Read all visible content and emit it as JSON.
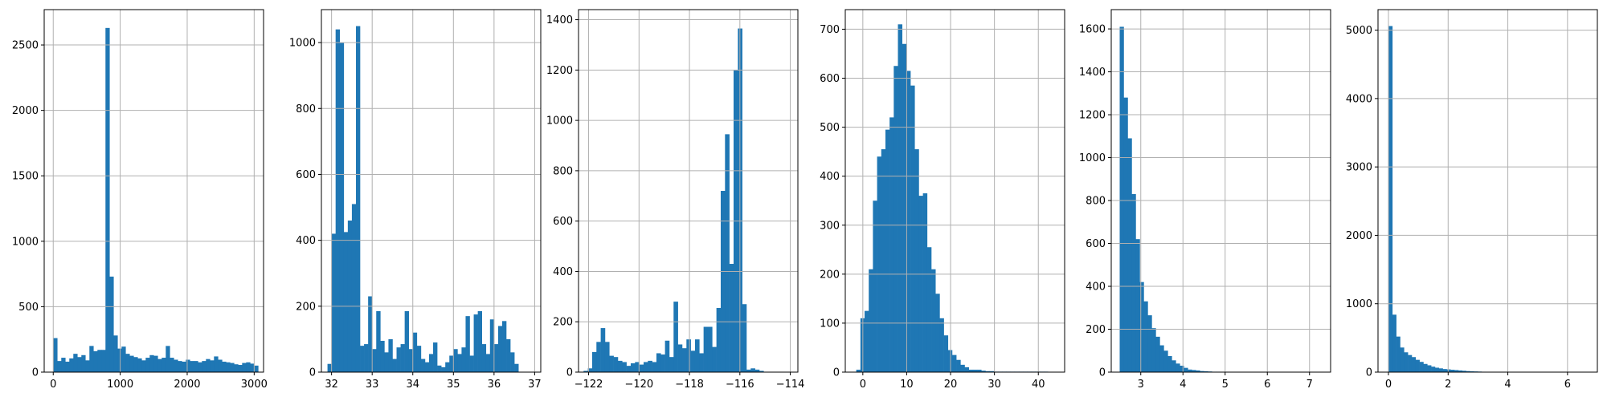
{
  "colors": {
    "bar": "#1f77b4",
    "grid": "#b0b0b0",
    "frame": "#000000",
    "background": "#ffffff"
  },
  "chart_data": [
    {
      "type": "bar",
      "grid": true,
      "xlim": [
        -135,
        3140
      ],
      "ylim": [
        0,
        2770
      ],
      "xticks": [
        0,
        1000,
        2000,
        3000
      ],
      "xtick_labels": [
        "0",
        "1000",
        "2000",
        "3000"
      ],
      "yticks": [
        0,
        500,
        1000,
        1500,
        2000,
        2500
      ],
      "ytick_labels": [
        "0",
        "500",
        "1000",
        "1500",
        "2000",
        "2500"
      ],
      "bins": {
        "start": 0,
        "width": 60
      },
      "values": [
        260,
        85,
        110,
        80,
        105,
        140,
        115,
        130,
        90,
        200,
        160,
        170,
        170,
        2630,
        730,
        280,
        180,
        195,
        140,
        125,
        115,
        105,
        90,
        110,
        130,
        125,
        100,
        110,
        200,
        110,
        95,
        85,
        80,
        95,
        85,
        85,
        75,
        85,
        100,
        90,
        120,
        95,
        80,
        75,
        70,
        60,
        55,
        70,
        75,
        65,
        50
      ]
    },
    {
      "type": "bar",
      "grid": true,
      "xlim": [
        31.75,
        37.15
      ],
      "ylim": [
        0,
        1100
      ],
      "xticks": [
        32,
        33,
        34,
        35,
        36,
        37
      ],
      "xtick_labels": [
        "32",
        "33",
        "34",
        "35",
        "36",
        "37"
      ],
      "yticks": [
        0,
        200,
        400,
        600,
        800,
        1000
      ],
      "ytick_labels": [
        "0",
        "200",
        "400",
        "600",
        "800",
        "1000"
      ],
      "bins": {
        "start": 31.9,
        "width": 0.1
      },
      "values": [
        25,
        420,
        1040,
        1000,
        425,
        460,
        510,
        1050,
        80,
        85,
        230,
        70,
        185,
        95,
        60,
        100,
        40,
        75,
        85,
        185,
        70,
        120,
        80,
        40,
        30,
        55,
        90,
        20,
        15,
        30,
        50,
        70,
        55,
        75,
        170,
        50,
        175,
        185,
        85,
        55,
        160,
        85,
        140,
        155,
        100,
        60,
        25
      ]
    },
    {
      "type": "bar",
      "grid": true,
      "xlim": [
        -122.4,
        -113.7
      ],
      "ylim": [
        0,
        1440
      ],
      "xticks": [
        -122,
        -120,
        -118,
        -116,
        -114
      ],
      "xtick_labels": [
        "−122",
        "−120",
        "−118",
        "−116",
        "−114"
      ],
      "yticks": [
        0,
        200,
        400,
        600,
        800,
        1000,
        1200,
        1400
      ],
      "ytick_labels": [
        "0",
        "200",
        "400",
        "600",
        "800",
        "1000",
        "1200",
        "1400"
      ],
      "bins": {
        "start": -122.2,
        "width": 0.17
      },
      "values": [
        5,
        15,
        80,
        120,
        175,
        120,
        65,
        60,
        45,
        40,
        25,
        35,
        40,
        30,
        40,
        45,
        40,
        75,
        70,
        125,
        60,
        280,
        110,
        95,
        130,
        85,
        130,
        75,
        180,
        180,
        100,
        255,
        720,
        945,
        430,
        1200,
        1365,
        270,
        10,
        15,
        10,
        5
      ]
    },
    {
      "type": "bar",
      "grid": true,
      "xlim": [
        -4,
        46
      ],
      "ylim": [
        0,
        740
      ],
      "xticks": [
        0,
        10,
        20,
        30,
        40
      ],
      "xtick_labels": [
        "0",
        "10",
        "20",
        "30",
        "40"
      ],
      "yticks": [
        0,
        100,
        200,
        300,
        400,
        500,
        600,
        700
      ],
      "ytick_labels": [
        "0",
        "100",
        "200",
        "300",
        "400",
        "500",
        "600",
        "700"
      ],
      "bins": {
        "start": -1.5,
        "width": 0.95
      },
      "values": [
        5,
        110,
        125,
        210,
        350,
        440,
        455,
        495,
        520,
        625,
        710,
        670,
        615,
        585,
        455,
        360,
        365,
        255,
        210,
        160,
        110,
        75,
        45,
        35,
        25,
        15,
        10,
        5,
        5,
        5,
        3,
        2,
        2,
        1,
        1,
        1,
        1,
        1,
        1,
        1,
        1,
        1,
        1,
        1,
        1,
        1
      ]
    },
    {
      "type": "bar",
      "grid": true,
      "xlim": [
        2.3,
        7.5
      ],
      "ylim": [
        0,
        1690
      ],
      "xticks": [
        3,
        4,
        5,
        6,
        7
      ],
      "xtick_labels": [
        "3",
        "4",
        "5",
        "6",
        "7"
      ],
      "yticks": [
        0,
        200,
        400,
        600,
        800,
        1000,
        1200,
        1400,
        1600
      ],
      "ytick_labels": [
        "0",
        "200",
        "400",
        "600",
        "800",
        "1000",
        "1200",
        "1400",
        "1600"
      ],
      "bins": {
        "start": 2.5,
        "width": 0.095
      },
      "values": [
        1610,
        1280,
        1090,
        830,
        620,
        420,
        330,
        265,
        205,
        165,
        125,
        100,
        75,
        55,
        40,
        30,
        20,
        12,
        10,
        8,
        5,
        4,
        3,
        2,
        2,
        1,
        1,
        1,
        1,
        1,
        1,
        1,
        1,
        1,
        1,
        1,
        1,
        1,
        1,
        1,
        1,
        1,
        1,
        1,
        1,
        1,
        1,
        1,
        1,
        1
      ]
    },
    {
      "type": "bar",
      "grid": true,
      "xlim": [
        -0.35,
        7.0
      ],
      "ylim": [
        0,
        5300
      ],
      "xticks": [
        0,
        2,
        4,
        6
      ],
      "xtick_labels": [
        "0",
        "2",
        "4",
        "6"
      ],
      "yticks": [
        0,
        1000,
        2000,
        3000,
        4000,
        5000
      ],
      "ytick_labels": [
        "0",
        "1000",
        "2000",
        "3000",
        "4000",
        "5000"
      ],
      "bins": {
        "start": 0,
        "width": 0.13
      },
      "values": [
        5060,
        840,
        520,
        360,
        290,
        250,
        220,
        180,
        150,
        120,
        100,
        80,
        65,
        55,
        45,
        40,
        35,
        30,
        25,
        20,
        15,
        12,
        10,
        8,
        6,
        5,
        5,
        4,
        3,
        3,
        2,
        2,
        2,
        2,
        1,
        1,
        1,
        1,
        1,
        1,
        1,
        1,
        1,
        1,
        1,
        1,
        1,
        1,
        1,
        1
      ]
    }
  ]
}
